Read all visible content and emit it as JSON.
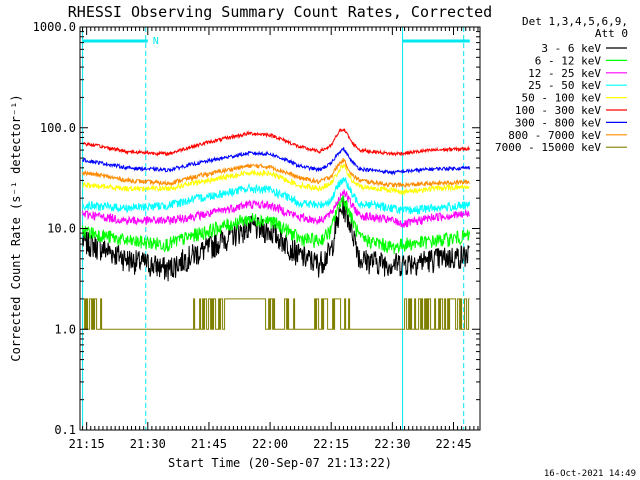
{
  "chart_data": {
    "type": "line",
    "title": "RHESSI Observing Summary Count Rates, Corrected",
    "xlabel": "Start Time (20-Sep-07 21:13:22)",
    "ylabel": "Corrected Count Rate (s⁻¹ detector⁻¹)",
    "y_scale": "log",
    "ylim": [
      0.1,
      1000
    ],
    "xlim": [
      "21:13:22",
      "22:51:30"
    ],
    "x_ticks": [
      "21:15",
      "21:30",
      "21:45",
      "22:00",
      "22:15",
      "22:30",
      "22:45"
    ],
    "y_ticks": [
      "0.1",
      "1.0",
      "10.0",
      "100.0",
      "1000.0"
    ],
    "legend": {
      "placement": "right",
      "header1": "Det 1,3,4,5,6,9,",
      "header2": "Att 0"
    },
    "flags": {
      "label": "N",
      "daylight_lines": [
        "21:14:00",
        "21:29:30",
        "22:32:30",
        "22:47:30"
      ],
      "bars": [
        [
          "21:14:00",
          "21:30:00"
        ],
        [
          "22:32:30",
          "22:49:00"
        ]
      ],
      "color": "#00e8f0"
    },
    "series": [
      {
        "name": "3 - 6 keV",
        "color": "#000000",
        "x": [
          "21:14",
          "21:25",
          "21:35",
          "21:45",
          "21:55",
          "22:00",
          "22:07",
          "22:12",
          "22:15",
          "22:17",
          "22:18",
          "22:20",
          "22:22",
          "22:30",
          "22:33",
          "22:40",
          "22:49"
        ],
        "y": [
          7.5,
          5.0,
          4.0,
          6.5,
          10.5,
          9.5,
          5.5,
          4.5,
          6.0,
          13.5,
          17.0,
          10.0,
          5.0,
          4.5,
          4.6,
          5.0,
          5.5
        ]
      },
      {
        "name": "6 - 12 keV",
        "color": "#00ff00",
        "x": [
          "21:14",
          "21:25",
          "21:35",
          "21:45",
          "21:55",
          "22:00",
          "22:07",
          "22:12",
          "22:15",
          "22:17",
          "22:18",
          "22:20",
          "22:22",
          "22:30",
          "22:33",
          "22:40",
          "22:49"
        ],
        "y": [
          9.5,
          7.5,
          7.0,
          9.5,
          12.5,
          12.0,
          8.0,
          7.5,
          9.5,
          18.0,
          20.0,
          12.5,
          8.0,
          6.5,
          7.0,
          7.5,
          8.5
        ]
      },
      {
        "name": "12 - 25 keV",
        "color": "#ff00ff",
        "x": [
          "21:14",
          "21:25",
          "21:35",
          "21:45",
          "21:55",
          "22:00",
          "22:07",
          "22:12",
          "22:15",
          "22:17",
          "22:18",
          "22:20",
          "22:22",
          "22:30",
          "22:33",
          "22:40",
          "22:49"
        ],
        "y": [
          14.0,
          12.0,
          12.0,
          14.0,
          17.5,
          17.0,
          13.0,
          12.0,
          14.0,
          20.0,
          24.0,
          17.0,
          13.5,
          12.0,
          11.0,
          13.0,
          14.0
        ]
      },
      {
        "name": "25 - 50 keV",
        "color": "#00ffff",
        "x": [
          "21:14",
          "21:25",
          "21:35",
          "21:45",
          "21:55",
          "22:00",
          "22:07",
          "22:12",
          "22:15",
          "22:17",
          "22:18",
          "22:20",
          "22:22",
          "22:30",
          "22:33",
          "22:40",
          "22:49"
        ],
        "y": [
          17.0,
          16.0,
          17.0,
          21.0,
          25.0,
          24.0,
          18.0,
          17.0,
          19.0,
          28.0,
          32.0,
          22.0,
          18.0,
          16.0,
          15.0,
          16.0,
          17.0
        ]
      },
      {
        "name": "50 - 100 keV",
        "color": "#ffff00",
        "x": [
          "21:14",
          "21:25",
          "21:35",
          "21:45",
          "21:55",
          "22:00",
          "22:07",
          "22:12",
          "22:15",
          "22:17",
          "22:18",
          "22:20",
          "22:22",
          "22:30",
          "22:33",
          "22:40",
          "22:49"
        ],
        "y": [
          27.0,
          25.0,
          25.0,
          30.0,
          36.0,
          35.0,
          27.0,
          25.0,
          28.0,
          38.0,
          42.0,
          30.0,
          26.0,
          24.0,
          23.0,
          25.0,
          26.0
        ]
      },
      {
        "name": "100 - 300 keV",
        "color": "#ff0000",
        "x": [
          "21:14",
          "21:25",
          "21:35",
          "21:45",
          "21:55",
          "22:00",
          "22:07",
          "22:12",
          "22:15",
          "22:17",
          "22:18",
          "22:20",
          "22:22",
          "22:30",
          "22:33",
          "22:40",
          "22:49"
        ],
        "y": [
          70.0,
          58.0,
          55.0,
          72.0,
          88.0,
          85.0,
          65.0,
          58.0,
          66.0,
          92.0,
          98.0,
          72.0,
          60.0,
          55.0,
          56.0,
          60.0,
          62.0
        ]
      },
      {
        "name": "300 - 800 keV",
        "color": "#0000ff",
        "x": [
          "21:14",
          "21:25",
          "21:35",
          "21:45",
          "21:55",
          "22:00",
          "22:07",
          "22:12",
          "22:15",
          "22:17",
          "22:18",
          "22:20",
          "22:22",
          "22:30",
          "22:33",
          "22:40",
          "22:49"
        ],
        "y": [
          48.0,
          40.0,
          38.0,
          47.0,
          56.0,
          55.0,
          42.0,
          38.0,
          44.0,
          58.0,
          62.0,
          46.0,
          39.0,
          36.0,
          37.0,
          39.0,
          40.0
        ]
      },
      {
        "name": "800 - 7000 keV",
        "color": "#ff8c00",
        "x": [
          "21:14",
          "21:25",
          "21:35",
          "21:45",
          "21:55",
          "22:00",
          "22:07",
          "22:12",
          "22:15",
          "22:17",
          "22:18",
          "22:20",
          "22:22",
          "22:30",
          "22:33",
          "22:40",
          "22:49"
        ],
        "y": [
          36.0,
          30.0,
          28.0,
          35.0,
          42.0,
          41.0,
          32.0,
          29.0,
          33.0,
          44.0,
          48.0,
          34.0,
          30.0,
          27.0,
          27.0,
          28.0,
          29.0
        ]
      },
      {
        "name": "7000 - 15000 keV",
        "color": "#808000",
        "x": [
          "21:14",
          "21:20",
          "21:30",
          "21:40",
          "21:47",
          "21:50",
          "21:55",
          "22:00",
          "22:07",
          "22:10",
          "22:12",
          "22:14",
          "22:16",
          "22:20",
          "22:24",
          "22:30",
          "22:34",
          "22:40",
          "22:49"
        ],
        "y": [
          1.5,
          1.0,
          1.0,
          1.0,
          1.6,
          2.2,
          2.0,
          1.6,
          1.0,
          1.0,
          1.6,
          1.2,
          1.6,
          1.0,
          1.0,
          1.0,
          1.4,
          1.6,
          1.5
        ]
      }
    ],
    "timestamp": "16-Oct-2021 14:49"
  }
}
